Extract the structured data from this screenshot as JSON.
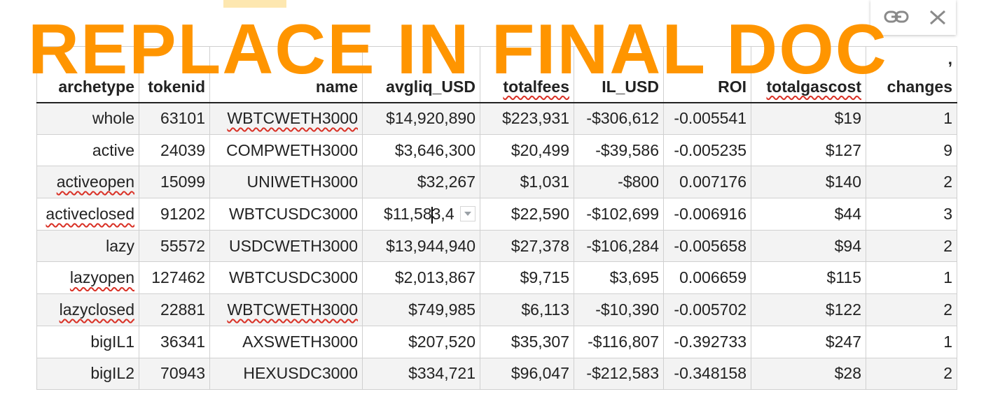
{
  "watermark": "REPLACE IN FINAL DOC",
  "header_extra": ", ",
  "columns": [
    "archetype",
    "tokenid",
    "name",
    "avgliq_USD",
    "totalfees",
    "IL_USD",
    "ROI",
    "totalgascost",
    "changes"
  ],
  "rows": [
    {
      "archetype": "whole",
      "tokenid": "63101",
      "name": "WBTCWETH3000",
      "avgliq_USD": "$14,920,890",
      "totalfees": "$223,931",
      "IL_USD": "-$306,612",
      "ROI": "-0.005541",
      "totalgascost": "$19",
      "changes": "1"
    },
    {
      "archetype": "active",
      "tokenid": "24039",
      "name": "COMPWETH3000",
      "avgliq_USD": "$3,646,300",
      "totalfees": "$20,499",
      "IL_USD": "-$39,586",
      "ROI": "-0.005235",
      "totalgascost": "$127",
      "changes": "9"
    },
    {
      "archetype": "activeopen",
      "tokenid": "15099",
      "name": "UNIWETH3000",
      "avgliq_USD": "$32,267",
      "totalfees": "$1,031",
      "IL_USD": "-$800",
      "ROI": "0.007176",
      "totalgascost": "$140",
      "changes": "2"
    },
    {
      "archetype": "activeclosed",
      "tokenid": "91202",
      "name": "WBTCUSDC3000",
      "avgliq_USD": "$11,58",
      "avgliq_USD_after_caret": "3,4",
      "totalfees": "$22,590",
      "IL_USD": "-$102,699",
      "ROI": "-0.006916",
      "totalgascost": "$44",
      "changes": "3"
    },
    {
      "archetype": "lazy",
      "tokenid": "55572",
      "name": "USDCWETH3000",
      "avgliq_USD": "$13,944,940",
      "totalfees": "$27,378",
      "IL_USD": "-$106,284",
      "ROI": "-0.005658",
      "totalgascost": "$94",
      "changes": "2"
    },
    {
      "archetype": "lazyopen",
      "tokenid": "127462",
      "name": "WBTCUSDC3000",
      "avgliq_USD": "$2,013,867",
      "totalfees": "$9,715",
      "IL_USD": "$3,695",
      "ROI": "0.006659",
      "totalgascost": "$115",
      "changes": "1"
    },
    {
      "archetype": "lazyclosed",
      "tokenid": "22881",
      "name": "WBTCWETH3000",
      "avgliq_USD": "$749,985",
      "totalfees": "$6,113",
      "IL_USD": "-$10,390",
      "ROI": "-0.005702",
      "totalgascost": "$122",
      "changes": "2"
    },
    {
      "archetype": "bigIL1",
      "tokenid": "36341",
      "name": "AXSWETH3000",
      "avgliq_USD": "$207,520",
      "totalfees": "$35,307",
      "IL_USD": "-$116,807",
      "ROI": "-0.392733",
      "totalgascost": "$247",
      "changes": "1"
    },
    {
      "archetype": "bigIL2",
      "tokenid": "70943",
      "name": "HEXUSDC3000",
      "avgliq_USD": "$334,721",
      "totalfees": "$96,047",
      "IL_USD": "-$212,583",
      "ROI": "-0.348158",
      "totalgascost": "$28",
      "changes": "2"
    }
  ],
  "icons": [
    "link-icon",
    "close-icon",
    "dropdown-arrow-icon"
  ],
  "colors": {
    "watermark": "#ff9500",
    "spellcheck": "#d93025",
    "stripe": "#f3f3f3"
  }
}
